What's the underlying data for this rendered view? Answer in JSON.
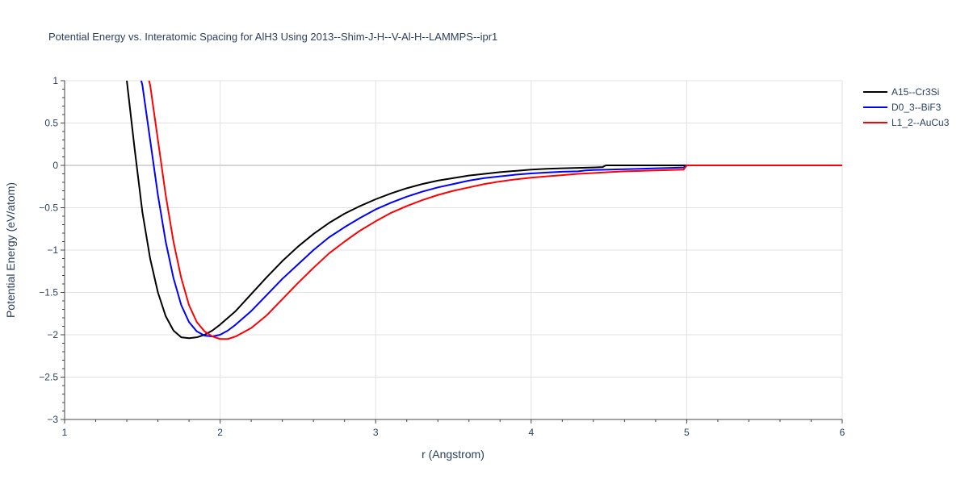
{
  "chart_data": {
    "type": "line",
    "title": "Potential Energy vs. Interatomic Spacing for AlH3 Using 2013--Shim-J-H--V-Al-H--LAMMPS--ipr1",
    "xlabel": "r (Angstrom)",
    "ylabel": "Potential Energy (eV/atom)",
    "xlim": [
      1,
      6
    ],
    "ylim": [
      -3,
      1
    ],
    "xticks": [
      1,
      2,
      3,
      4,
      5,
      6
    ],
    "xtick_labels": [
      "1",
      "2",
      "3",
      "4",
      "5",
      "6"
    ],
    "yticks": [
      -3,
      -2.5,
      -2,
      -1.5,
      -1,
      -0.5,
      0,
      0.5,
      1
    ],
    "ytick_labels": [
      "−3",
      "−2.5",
      "−2",
      "−1.5",
      "−1",
      "−0.5",
      "0",
      "0.5",
      "1"
    ],
    "grid": true,
    "legend_position": "top-right",
    "series": [
      {
        "name": "A15--Cr3Si",
        "color": "#000000",
        "x": [
          1.35,
          1.4,
          1.45,
          1.5,
          1.55,
          1.6,
          1.65,
          1.7,
          1.75,
          1.8,
          1.85,
          1.9,
          1.95,
          2.0,
          2.1,
          2.2,
          2.3,
          2.4,
          2.5,
          2.6,
          2.7,
          2.8,
          2.9,
          3.0,
          3.1,
          3.2,
          3.3,
          3.4,
          3.5,
          3.6,
          3.7,
          3.8,
          3.9,
          4.0,
          4.1,
          4.2,
          4.3,
          4.4,
          4.46,
          4.47,
          4.48,
          4.5,
          4.6,
          4.8,
          5.0
        ],
        "y": [
          1.3,
          1.0,
          0.2,
          -0.55,
          -1.1,
          -1.5,
          -1.78,
          -1.95,
          -2.03,
          -2.04,
          -2.03,
          -2.0,
          -1.95,
          -1.88,
          -1.72,
          -1.52,
          -1.32,
          -1.13,
          -0.96,
          -0.81,
          -0.68,
          -0.57,
          -0.48,
          -0.4,
          -0.33,
          -0.27,
          -0.22,
          -0.18,
          -0.15,
          -0.12,
          -0.1,
          -0.08,
          -0.065,
          -0.05,
          -0.04,
          -0.035,
          -0.03,
          -0.025,
          -0.02,
          -0.01,
          0.0,
          0.0,
          0.0,
          0.0,
          0.0
        ]
      },
      {
        "name": "D0_3--BiF3",
        "color": "#0000ff",
        "x": [
          1.45,
          1.5,
          1.55,
          1.6,
          1.65,
          1.7,
          1.75,
          1.8,
          1.85,
          1.9,
          1.95,
          2.0,
          2.05,
          2.1,
          2.2,
          2.3,
          2.4,
          2.5,
          2.6,
          2.7,
          2.8,
          2.9,
          3.0,
          3.1,
          3.2,
          3.3,
          3.4,
          3.5,
          3.6,
          3.7,
          3.8,
          3.9,
          4.0,
          4.1,
          4.2,
          4.3,
          4.35,
          4.4,
          4.5,
          4.6,
          4.7,
          4.8,
          4.9,
          4.98,
          5.0,
          5.5,
          6.0
        ],
        "y": [
          1.3,
          0.95,
          0.3,
          -0.35,
          -0.9,
          -1.33,
          -1.65,
          -1.85,
          -1.96,
          -2.01,
          -2.02,
          -2.0,
          -1.95,
          -1.88,
          -1.72,
          -1.53,
          -1.34,
          -1.17,
          -1.0,
          -0.85,
          -0.73,
          -0.62,
          -0.52,
          -0.44,
          -0.37,
          -0.31,
          -0.26,
          -0.22,
          -0.18,
          -0.15,
          -0.13,
          -0.11,
          -0.095,
          -0.085,
          -0.075,
          -0.07,
          -0.06,
          -0.055,
          -0.05,
          -0.045,
          -0.04,
          -0.035,
          -0.03,
          -0.025,
          0.0,
          0.0,
          0.0
        ]
      },
      {
        "name": "L1_2--AuCu3",
        "color": "#ff0000",
        "x": [
          1.5,
          1.55,
          1.6,
          1.65,
          1.7,
          1.75,
          1.8,
          1.85,
          1.9,
          1.95,
          2.0,
          2.05,
          2.1,
          2.2,
          2.3,
          2.4,
          2.5,
          2.6,
          2.7,
          2.8,
          2.9,
          3.0,
          3.1,
          3.2,
          3.3,
          3.4,
          3.5,
          3.6,
          3.7,
          3.8,
          3.9,
          4.0,
          4.1,
          4.2,
          4.3,
          4.4,
          4.5,
          4.6,
          4.7,
          4.8,
          4.9,
          4.98,
          5.0,
          5.5,
          6.0
        ],
        "y": [
          1.3,
          0.95,
          0.3,
          -0.35,
          -0.9,
          -1.33,
          -1.65,
          -1.85,
          -1.96,
          -2.02,
          -2.05,
          -2.05,
          -2.02,
          -1.92,
          -1.77,
          -1.58,
          -1.39,
          -1.21,
          -1.04,
          -0.9,
          -0.77,
          -0.66,
          -0.56,
          -0.48,
          -0.41,
          -0.35,
          -0.3,
          -0.26,
          -0.22,
          -0.19,
          -0.165,
          -0.145,
          -0.13,
          -0.115,
          -0.1,
          -0.09,
          -0.08,
          -0.07,
          -0.065,
          -0.06,
          -0.055,
          -0.05,
          0.0,
          0.0,
          0.0
        ]
      }
    ]
  }
}
